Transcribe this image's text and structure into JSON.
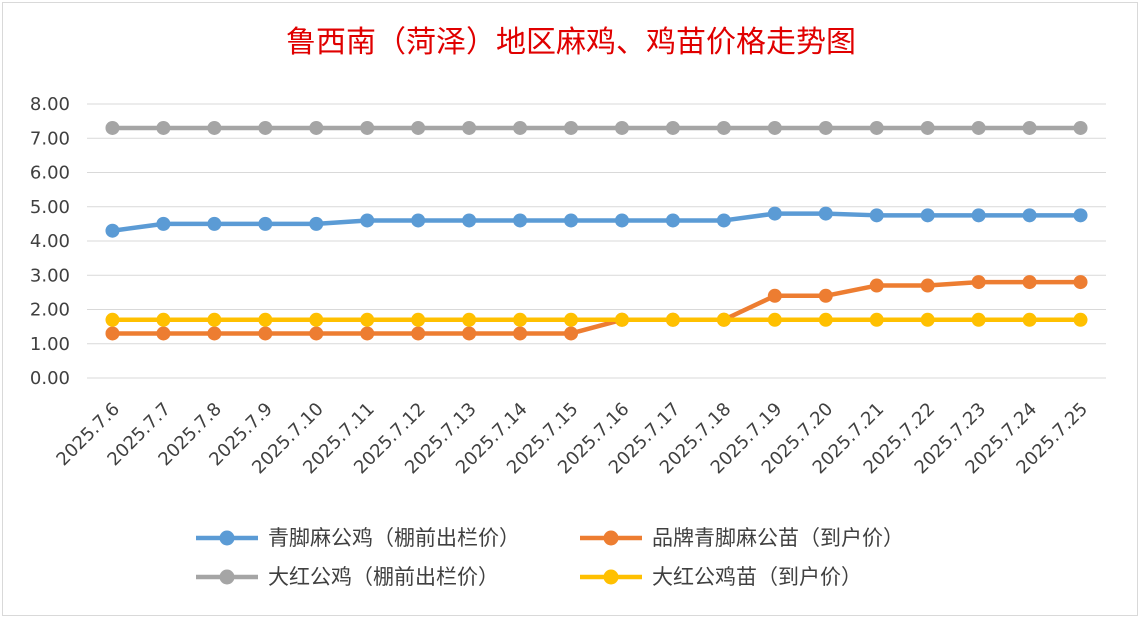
{
  "chart_data": {
    "type": "line",
    "title": "鲁西南（菏泽）地区麻鸡、鸡苗价格走势图",
    "categories": [
      "2025.7.6",
      "2025.7.7",
      "2025.7.8",
      "2025.7.9",
      "2025.7.10",
      "2025.7.11",
      "2025.7.12",
      "2025.7.13",
      "2025.7.14",
      "2025.7.15",
      "2025.7.16",
      "2025.7.17",
      "2025.7.18",
      "2025.7.19",
      "2025.7.20",
      "2025.7.21",
      "2025.7.22",
      "2025.7.23",
      "2025.7.24",
      "2025.7.25"
    ],
    "yticks": [
      "0.00",
      "1.00",
      "2.00",
      "3.00",
      "4.00",
      "5.00",
      "6.00",
      "7.00",
      "8.00"
    ],
    "ylim": [
      0,
      8
    ],
    "grid": true,
    "legend_position": "bottom",
    "series": [
      {
        "name": "青脚麻公鸡（棚前出栏价）",
        "color": "#5b9bd5",
        "values": [
          4.3,
          4.5,
          4.5,
          4.5,
          4.5,
          4.6,
          4.6,
          4.6,
          4.6,
          4.6,
          4.6,
          4.6,
          4.6,
          4.8,
          4.8,
          4.75,
          4.75,
          4.75,
          4.75,
          4.75
        ]
      },
      {
        "name": "品牌青脚麻公苗（到户价）",
        "color": "#ed7d31",
        "values": [
          1.3,
          1.3,
          1.3,
          1.3,
          1.3,
          1.3,
          1.3,
          1.3,
          1.3,
          1.3,
          1.7,
          1.7,
          1.7,
          2.4,
          2.4,
          2.7,
          2.7,
          2.8,
          2.8,
          2.8
        ]
      },
      {
        "name": "大红公鸡（棚前出栏价）",
        "color": "#a5a5a5",
        "values": [
          7.3,
          7.3,
          7.3,
          7.3,
          7.3,
          7.3,
          7.3,
          7.3,
          7.3,
          7.3,
          7.3,
          7.3,
          7.3,
          7.3,
          7.3,
          7.3,
          7.3,
          7.3,
          7.3,
          7.3
        ]
      },
      {
        "name": "大红公鸡苗（到户价）",
        "color": "#ffc000",
        "values": [
          1.7,
          1.7,
          1.7,
          1.7,
          1.7,
          1.7,
          1.7,
          1.7,
          1.7,
          1.7,
          1.7,
          1.7,
          1.7,
          1.7,
          1.7,
          1.7,
          1.7,
          1.7,
          1.7,
          1.7
        ]
      }
    ]
  }
}
